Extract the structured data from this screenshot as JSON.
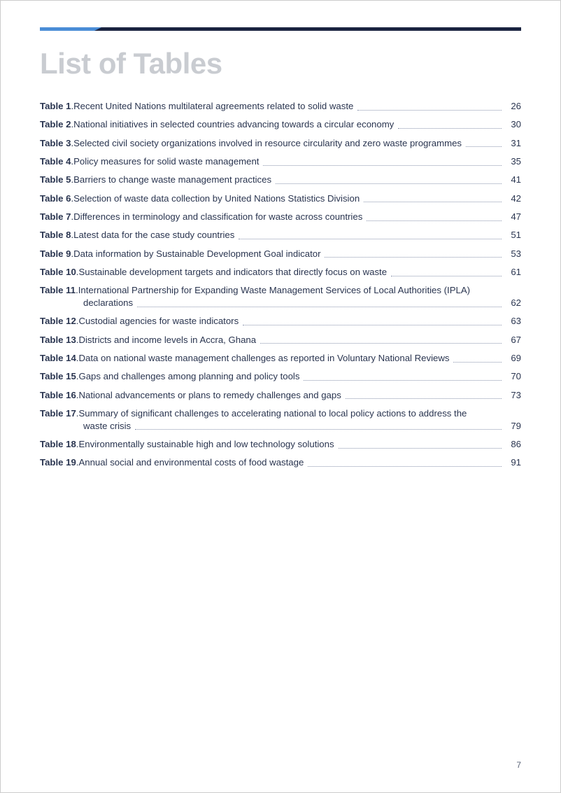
{
  "colors": {
    "rule_dark": "#1a2340",
    "rule_blue": "#4a8dd6",
    "title": "#c9ccd1",
    "text": "#2a3550",
    "leader": "#8a94ad"
  },
  "title": "List of Tables",
  "page_number": "7",
  "entries": [
    {
      "num": "Table 1",
      "desc": "Recent United Nations multilateral agreements related to solid waste",
      "page": "26"
    },
    {
      "num": "Table 2",
      "desc": "National initiatives in selected countries advancing towards a circular economy",
      "page": "30"
    },
    {
      "num": "Table 3",
      "desc": "Selected civil society organizations involved in resource circularity and zero waste programmes",
      "page": "31"
    },
    {
      "num": "Table 4",
      "desc": "Policy measures for solid waste management",
      "page": "35"
    },
    {
      "num": "Table 5",
      "desc": "Barriers to change waste management practices",
      "page": "41"
    },
    {
      "num": "Table 6",
      "desc": "Selection of waste data collection by United Nations Statistics Division",
      "page": "42"
    },
    {
      "num": "Table 7",
      "desc": "Differences in terminology and classification for waste across countries",
      "page": "47"
    },
    {
      "num": "Table 8",
      "desc": "Latest data for the case study countries",
      "page": "51"
    },
    {
      "num": "Table 9",
      "desc": "Data information by Sustainable Development Goal indicator",
      "page": "53"
    },
    {
      "num": "Table 10",
      "desc": "Sustainable development targets and indicators that directly focus on waste",
      "page": "61"
    },
    {
      "num": "Table 11",
      "desc_line1": "International Partnership for Expanding Waste Management Services of Local Authorities (IPLA)",
      "desc_line2": "declarations",
      "page": "62",
      "multiline": true
    },
    {
      "num": "Table 12",
      "desc": "Custodial agencies for waste indicators",
      "page": "63"
    },
    {
      "num": "Table 13",
      "desc": "Districts and income levels in Accra, Ghana",
      "page": "67"
    },
    {
      "num": "Table 14",
      "desc": "Data on national waste management challenges as reported in Voluntary National Reviews",
      "page": "69"
    },
    {
      "num": "Table 15",
      "desc": "Gaps and challenges among planning and policy tools",
      "page": "70"
    },
    {
      "num": "Table 16",
      "desc": "National advancements or plans to remedy challenges and gaps",
      "page": "73"
    },
    {
      "num": "Table 17",
      "desc_line1": "Summary of significant challenges to accelerating national to local policy actions to address the",
      "desc_line2": "waste crisis",
      "page": "79",
      "multiline": true
    },
    {
      "num": "Table 18",
      "desc": "Environmentally sustainable high and low technology solutions",
      "page": "86"
    },
    {
      "num": "Table 19",
      "desc": "Annual social and environmental costs of food wastage",
      "page": "91"
    }
  ]
}
